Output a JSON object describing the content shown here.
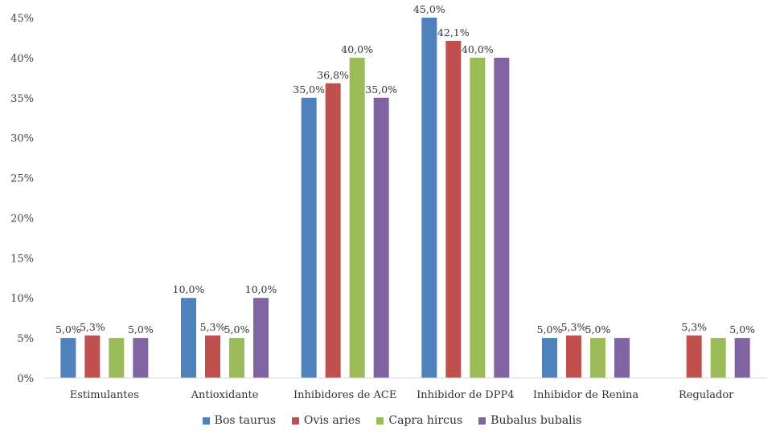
{
  "chart_data": {
    "type": "bar",
    "categories": [
      "Estimulantes",
      "Antioxidante",
      "Inhibidores de ACE",
      "Inhibidor de DPP4",
      "Inhibidor de Renina",
      "Regulador"
    ],
    "series": [
      {
        "name": "Bos taurus",
        "color": "#4F81BD",
        "values": [
          5.0,
          10.0,
          35.0,
          45.0,
          5.0,
          null
        ],
        "labels": [
          "5,0%",
          "10,0%",
          "35,0%",
          "45,0%",
          "5,0%",
          ""
        ]
      },
      {
        "name": "Ovis aries",
        "color": "#C0504D",
        "values": [
          5.3,
          5.3,
          36.8,
          42.1,
          5.3,
          5.3
        ],
        "labels": [
          "5,3%",
          "5,3%",
          "36,8%",
          "42,1%",
          "5,3%",
          "5,3%"
        ]
      },
      {
        "name": "Capra hircus",
        "color": "#9BBB59",
        "values": [
          5.0,
          5.0,
          40.0,
          40.0,
          5.0,
          5.0
        ],
        "labels": [
          "",
          "5,0%",
          "40,0%",
          "40,0%",
          "5,0%",
          ""
        ]
      },
      {
        "name": "Bubalus bubalis",
        "color": "#8064A2",
        "values": [
          5.0,
          10.0,
          35.0,
          40.0,
          5.0,
          5.0
        ],
        "labels": [
          "5,0%",
          "10,0%",
          "35,0%",
          "",
          "",
          "5,0%"
        ]
      }
    ],
    "yticks": [
      "0%",
      "5%",
      "10%",
      "15%",
      "20%",
      "25%",
      "30%",
      "35%",
      "40%",
      "45%"
    ],
    "ylim": [
      0,
      45
    ],
    "grid": false,
    "legend_position": "bottom"
  }
}
